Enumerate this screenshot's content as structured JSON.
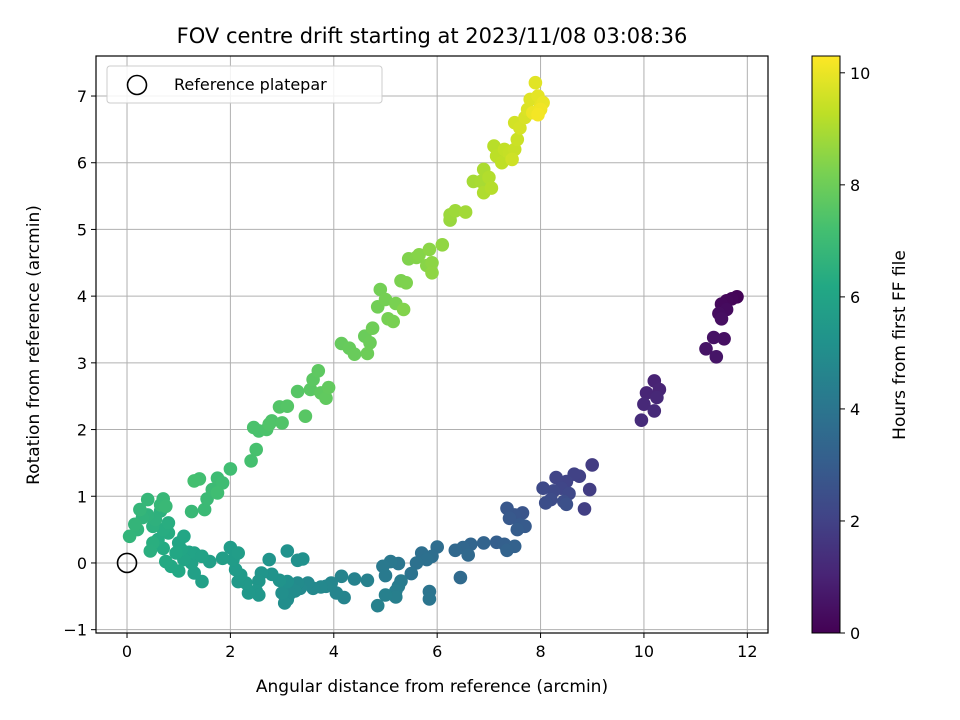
{
  "chart_data": {
    "type": "scatter",
    "title": "FOV centre drift starting at 2023/11/08 03:08:36",
    "xlabel": "Angular distance from reference (arcmin)",
    "ylabel": "Rotation from reference (arcmin)",
    "xlim": [
      -0.6,
      12.4
    ],
    "ylim": [
      -1.05,
      7.6
    ],
    "xticks": [
      0,
      2,
      4,
      6,
      8,
      10,
      12
    ],
    "yticks": [
      -1,
      0,
      1,
      2,
      3,
      4,
      5,
      6,
      7
    ],
    "grid": true,
    "legend": {
      "placement": "top-left",
      "entries": [
        "Reference platepar"
      ]
    },
    "reference_point": {
      "x": 0,
      "y": 0
    },
    "colorbar": {
      "label": "Hours from first FF file",
      "colormap": "viridis",
      "range": [
        0,
        10.3
      ],
      "ticks": [
        0,
        2,
        4,
        6,
        8,
        10
      ]
    },
    "series": [
      {
        "points": [
          [
            11.8,
            3.99
          ],
          [
            11.7,
            3.96
          ],
          [
            11.6,
            3.93
          ],
          [
            11.5,
            3.88
          ],
          [
            11.6,
            3.8
          ],
          [
            11.45,
            3.74
          ],
          [
            11.5,
            3.66
          ],
          [
            11.55,
            3.36
          ],
          [
            11.35,
            3.38
          ],
          [
            11.2,
            3.21
          ],
          [
            11.4,
            3.09
          ],
          [
            10.2,
            2.73
          ],
          [
            10.3,
            2.6
          ],
          [
            10.05,
            2.55
          ],
          [
            10.25,
            2.48
          ],
          [
            10.0,
            2.38
          ],
          [
            10.2,
            2.28
          ],
          [
            9.95,
            2.14
          ],
          [
            9.0,
            1.47
          ],
          [
            8.95,
            1.1
          ],
          [
            8.85,
            0.81
          ],
          [
            8.75,
            1.3
          ],
          [
            8.65,
            1.33
          ],
          [
            8.5,
            1.22
          ],
          [
            8.3,
            1.28
          ],
          [
            8.4,
            1.12
          ],
          [
            8.55,
            1.04
          ],
          [
            8.25,
            1.08
          ],
          [
            8.05,
            1.12
          ],
          [
            8.2,
            0.95
          ],
          [
            8.45,
            0.92
          ],
          [
            8.1,
            0.9
          ],
          [
            8.5,
            0.88
          ],
          [
            7.65,
            0.75
          ],
          [
            7.5,
            0.72
          ],
          [
            7.35,
            0.82
          ],
          [
            7.4,
            0.67
          ],
          [
            7.6,
            0.57
          ],
          [
            7.7,
            0.55
          ],
          [
            7.55,
            0.5
          ],
          [
            7.15,
            0.31
          ],
          [
            7.3,
            0.28
          ],
          [
            7.5,
            0.25
          ],
          [
            7.35,
            0.19
          ],
          [
            6.9,
            0.3
          ],
          [
            6.65,
            0.28
          ],
          [
            6.5,
            0.23
          ],
          [
            6.35,
            0.19
          ],
          [
            6.6,
            0.12
          ],
          [
            6.45,
            -0.22
          ],
          [
            6.0,
            0.24
          ],
          [
            5.9,
            0.1
          ],
          [
            5.7,
            0.15
          ],
          [
            5.8,
            0.05
          ],
          [
            5.6,
            0.0
          ],
          [
            5.5,
            -0.16
          ],
          [
            5.85,
            -0.43
          ],
          [
            5.85,
            -0.54
          ],
          [
            5.25,
            -0.01
          ],
          [
            5.1,
            0.02
          ],
          [
            4.95,
            -0.05
          ],
          [
            5.0,
            -0.19
          ],
          [
            5.3,
            -0.27
          ],
          [
            5.25,
            -0.35
          ],
          [
            5.2,
            -0.42
          ],
          [
            5.2,
            -0.51
          ],
          [
            5.0,
            -0.48
          ],
          [
            4.85,
            -0.64
          ]
        ],
        "hours": [
          0.1,
          0.15,
          0.2,
          0.25,
          0.3,
          0.35,
          0.4,
          0.45,
          0.5,
          0.55,
          0.6,
          1.0,
          1.05,
          1.1,
          1.15,
          1.2,
          1.25,
          1.3,
          1.8,
          1.85,
          1.9,
          1.95,
          2.0,
          2.05,
          2.1,
          2.15,
          2.2,
          2.25,
          2.3,
          2.35,
          2.4,
          2.45,
          2.5,
          2.7,
          2.75,
          2.8,
          2.85,
          2.9,
          2.95,
          3.0,
          3.1,
          3.15,
          3.2,
          3.25,
          3.3,
          3.35,
          3.4,
          3.45,
          3.5,
          3.55,
          3.65,
          3.7,
          3.75,
          3.8,
          3.85,
          3.9,
          3.95,
          4.0,
          4.05,
          4.1,
          4.15,
          4.2,
          4.25,
          4.3,
          4.35,
          4.4,
          4.45,
          4.5
        ]
      },
      {
        "points": [
          [
            4.65,
            -0.26
          ],
          [
            4.4,
            -0.24
          ],
          [
            4.15,
            -0.2
          ],
          [
            4.2,
            -0.52
          ],
          [
            4.05,
            -0.45
          ],
          [
            3.95,
            -0.3
          ],
          [
            3.85,
            -0.35
          ],
          [
            3.75,
            -0.36
          ],
          [
            3.6,
            -0.38
          ],
          [
            3.5,
            -0.3
          ],
          [
            3.35,
            -0.38
          ],
          [
            3.3,
            -0.3
          ],
          [
            3.25,
            -0.42
          ],
          [
            3.15,
            -0.46
          ],
          [
            3.1,
            -0.55
          ],
          [
            3.05,
            -0.6
          ],
          [
            3.0,
            -0.45
          ],
          [
            3.1,
            -0.28
          ],
          [
            3.3,
            0.04
          ],
          [
            3.4,
            0.06
          ],
          [
            3.1,
            0.18
          ],
          [
            2.95,
            -0.26
          ],
          [
            2.8,
            -0.17
          ],
          [
            2.75,
            0.05
          ],
          [
            2.6,
            -0.15
          ],
          [
            2.55,
            -0.27
          ],
          [
            2.5,
            -0.42
          ],
          [
            2.55,
            -0.48
          ],
          [
            2.35,
            -0.45
          ],
          [
            2.3,
            -0.3
          ],
          [
            2.15,
            -0.28
          ],
          [
            2.2,
            -0.18
          ],
          [
            2.1,
            -0.1
          ],
          [
            2.05,
            0.05
          ],
          [
            2.0,
            0.23
          ],
          [
            2.15,
            0.15
          ],
          [
            1.85,
            0.07
          ],
          [
            1.6,
            0.02
          ],
          [
            1.45,
            -0.28
          ],
          [
            1.3,
            -0.15
          ],
          [
            1.25,
            0.0
          ],
          [
            1.3,
            0.15
          ],
          [
            1.45,
            0.1
          ],
          [
            1.2,
            0.16
          ],
          [
            1.1,
            0.05
          ],
          [
            1.05,
            0.2
          ],
          [
            1.0,
            0.3
          ],
          [
            1.1,
            0.4
          ],
          [
            0.95,
            0.15
          ],
          [
            1.0,
            -0.12
          ],
          [
            0.85,
            -0.05
          ],
          [
            0.75,
            0.02
          ],
          [
            0.7,
            0.22
          ],
          [
            0.6,
            0.35
          ],
          [
            0.8,
            0.45
          ],
          [
            0.7,
            0.5
          ],
          [
            0.8,
            0.6
          ],
          [
            0.5,
            0.3
          ],
          [
            0.45,
            0.18
          ],
          [
            0.5,
            0.55
          ],
          [
            0.65,
            0.78
          ],
          [
            0.55,
            0.65
          ],
          [
            0.4,
            0.72
          ],
          [
            0.3,
            0.68
          ],
          [
            0.2,
            0.5
          ],
          [
            0.05,
            0.4
          ],
          [
            0.15,
            0.58
          ],
          [
            0.25,
            0.8
          ],
          [
            0.4,
            0.95
          ],
          [
            0.65,
            0.87
          ],
          [
            0.7,
            0.96
          ],
          [
            0.75,
            0.85
          ]
        ],
        "hours": [
          4.5,
          4.55,
          4.6,
          4.63,
          4.66,
          4.7,
          4.73,
          4.76,
          4.8,
          4.83,
          4.86,
          4.9,
          4.93,
          4.96,
          5.0,
          5.03,
          5.06,
          5.1,
          5.13,
          5.16,
          5.2,
          5.23,
          5.26,
          5.3,
          5.33,
          5.36,
          5.4,
          5.43,
          5.46,
          5.5,
          5.53,
          5.56,
          5.6,
          5.63,
          5.66,
          5.7,
          5.73,
          5.76,
          5.8,
          5.83,
          5.86,
          5.9,
          5.93,
          5.96,
          6.0,
          6.03,
          6.06,
          6.1,
          6.13,
          6.16,
          6.2,
          6.23,
          6.26,
          6.3,
          6.33,
          6.36,
          6.4,
          6.43,
          6.46,
          6.5,
          6.53,
          6.56,
          6.6,
          6.63,
          6.66,
          6.7,
          6.73,
          6.76,
          6.8,
          6.83,
          6.86,
          6.9
        ]
      },
      {
        "points": [
          [
            1.25,
            0.77
          ],
          [
            1.5,
            0.8
          ],
          [
            1.55,
            0.96
          ],
          [
            1.65,
            1.1
          ],
          [
            1.75,
            1.27
          ],
          [
            1.85,
            1.2
          ],
          [
            1.75,
            1.05
          ],
          [
            2.0,
            1.41
          ],
          [
            1.4,
            1.26
          ],
          [
            1.3,
            1.23
          ],
          [
            2.4,
            1.53
          ],
          [
            2.5,
            1.7
          ],
          [
            2.55,
            1.98
          ],
          [
            2.45,
            2.03
          ],
          [
            2.7,
            2.0
          ],
          [
            2.8,
            2.13
          ],
          [
            2.75,
            2.08
          ],
          [
            3.0,
            2.1
          ],
          [
            2.95,
            2.34
          ],
          [
            3.1,
            2.35
          ],
          [
            3.3,
            2.57
          ],
          [
            3.45,
            2.2
          ],
          [
            3.55,
            2.6
          ],
          [
            3.6,
            2.75
          ],
          [
            3.7,
            2.88
          ],
          [
            3.75,
            2.55
          ],
          [
            3.85,
            2.47
          ],
          [
            3.9,
            2.63
          ],
          [
            4.15,
            3.29
          ],
          [
            4.3,
            3.22
          ],
          [
            4.4,
            3.13
          ],
          [
            4.6,
            3.4
          ],
          [
            4.7,
            3.3
          ],
          [
            4.65,
            3.14
          ],
          [
            4.75,
            3.52
          ],
          [
            4.85,
            3.84
          ],
          [
            4.9,
            4.1
          ],
          [
            5.0,
            3.95
          ],
          [
            5.05,
            3.66
          ],
          [
            5.15,
            3.62
          ],
          [
            5.2,
            3.89
          ],
          [
            5.3,
            4.23
          ],
          [
            5.4,
            4.2
          ],
          [
            5.45,
            4.56
          ],
          [
            5.35,
            3.8
          ],
          [
            5.6,
            4.58
          ],
          [
            5.65,
            4.62
          ],
          [
            5.8,
            4.46
          ],
          [
            5.85,
            4.7
          ],
          [
            5.9,
            4.5
          ],
          [
            5.9,
            4.35
          ],
          [
            6.1,
            4.77
          ]
        ],
        "hours": [
          6.9,
          6.93,
          6.96,
          7.0,
          7.03,
          7.06,
          7.1,
          7.13,
          7.16,
          7.2,
          7.23,
          7.26,
          7.3,
          7.33,
          7.36,
          7.4,
          7.43,
          7.46,
          7.5,
          7.53,
          7.56,
          7.6,
          7.63,
          7.66,
          7.7,
          7.73,
          7.76,
          7.8,
          7.85,
          7.88,
          7.91,
          7.94,
          7.97,
          8.0,
          8.03,
          8.06,
          8.1,
          8.13,
          8.16,
          8.2,
          8.23,
          8.26,
          8.3,
          8.33,
          8.36,
          8.4,
          8.43,
          8.46,
          8.5,
          8.53,
          8.56,
          8.6
        ]
      },
      {
        "points": [
          [
            6.25,
            5.14
          ],
          [
            6.25,
            5.22
          ],
          [
            6.35,
            5.28
          ],
          [
            6.55,
            5.26
          ],
          [
            6.7,
            5.72
          ],
          [
            6.85,
            5.72
          ],
          [
            6.9,
            5.9
          ],
          [
            6.9,
            5.55
          ],
          [
            7.0,
            5.78
          ],
          [
            7.05,
            5.62
          ],
          [
            7.1,
            6.25
          ],
          [
            7.15,
            6.1
          ],
          [
            7.25,
            6.0
          ],
          [
            7.3,
            6.2
          ],
          [
            7.4,
            6.15
          ],
          [
            7.5,
            6.2
          ],
          [
            7.55,
            6.35
          ],
          [
            7.45,
            6.05
          ],
          [
            7.5,
            6.6
          ],
          [
            7.6,
            6.52
          ],
          [
            7.7,
            6.68
          ],
          [
            7.75,
            6.8
          ],
          [
            7.8,
            6.95
          ],
          [
            7.9,
            7.2
          ],
          [
            7.95,
            7.0
          ],
          [
            8.0,
            6.85
          ],
          [
            8.05,
            6.9
          ],
          [
            7.85,
            6.75
          ],
          [
            8.0,
            6.8
          ],
          [
            7.95,
            6.72
          ]
        ],
        "hours": [
          8.7,
          8.75,
          8.8,
          8.85,
          8.9,
          8.95,
          9.0,
          9.05,
          9.1,
          9.15,
          9.2,
          9.25,
          9.3,
          9.35,
          9.4,
          9.45,
          9.5,
          9.55,
          9.6,
          9.65,
          9.7,
          9.75,
          9.8,
          9.85,
          9.9,
          9.95,
          10.0,
          10.05,
          10.1,
          10.15
        ]
      }
    ]
  }
}
